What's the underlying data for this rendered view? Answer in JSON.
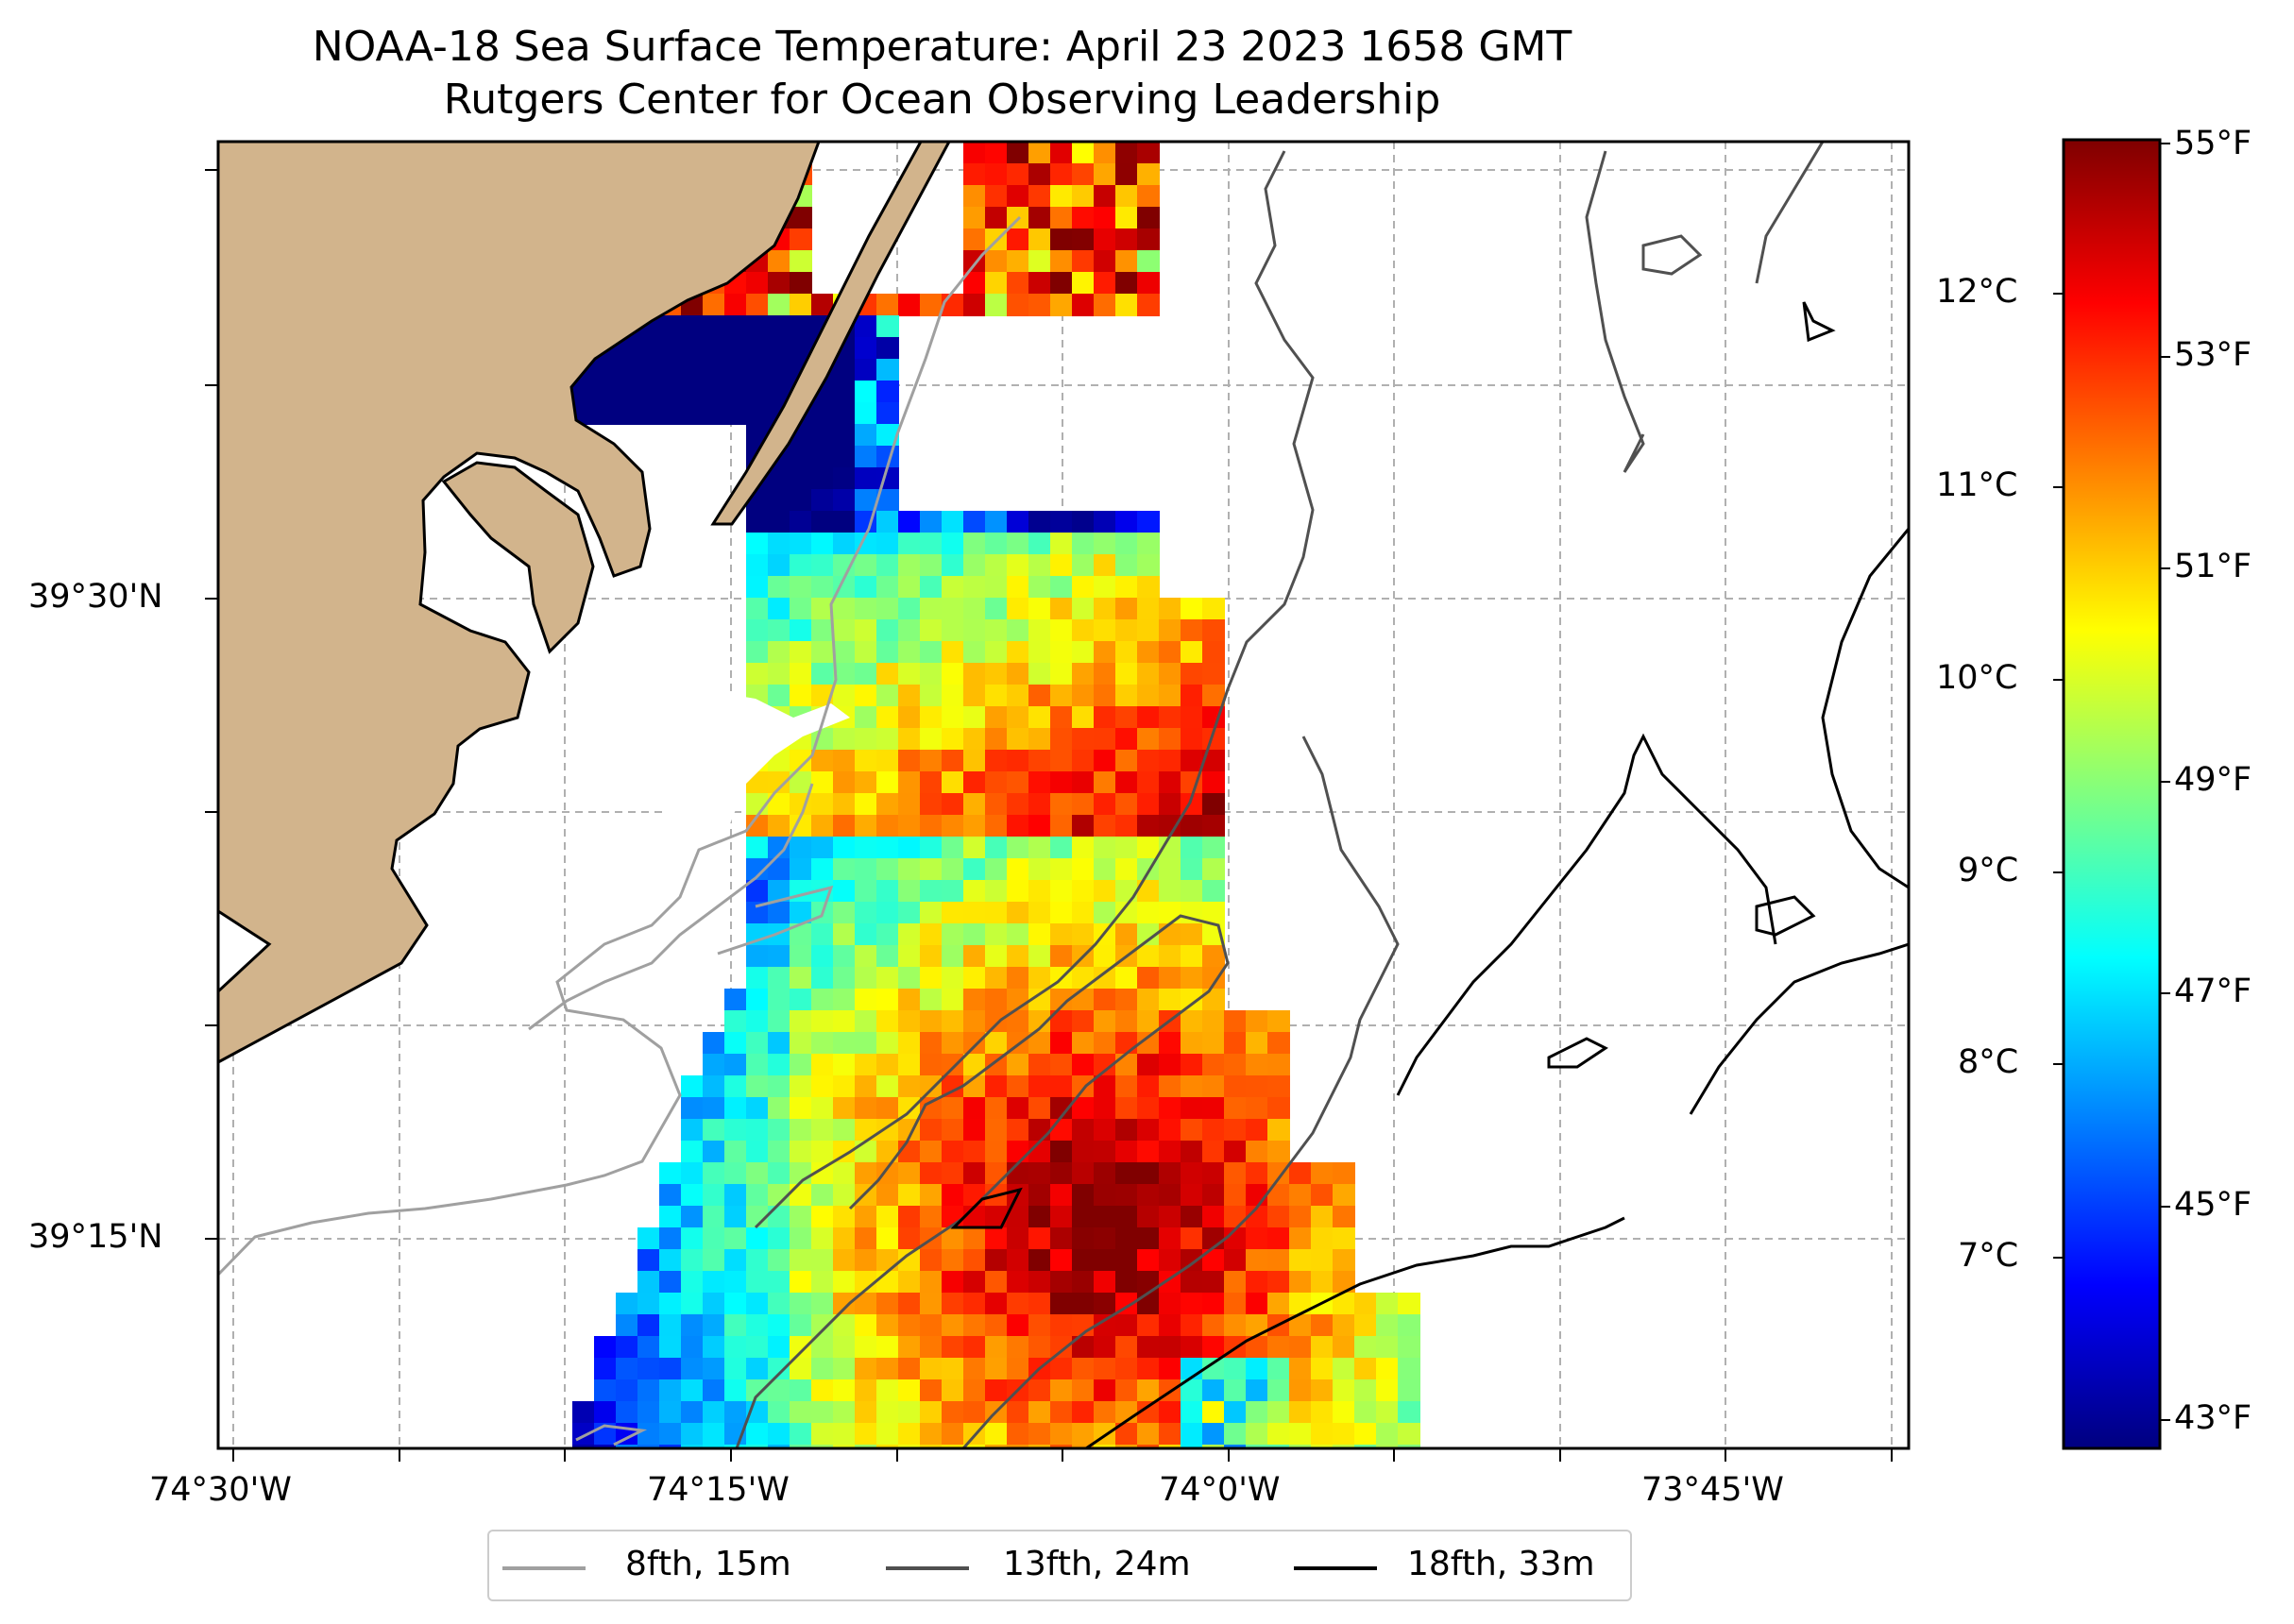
{
  "title": "NOAA-18 Sea Surface Temperature: April 23 2023 1658 GMT",
  "subtitle": "Rutgers Center for Ocean Observing Leadership",
  "map": {
    "lon_ticks": [
      "74°30'W",
      "74°15'W",
      "74°0'W",
      "73°45'W"
    ],
    "lat_ticks": [
      "39°30'N",
      "39°15'N"
    ],
    "land_color": "#d2b48c",
    "grid": true
  },
  "colorbar": {
    "colormap": "jet",
    "range_f": [
      42.8,
      55.2
    ],
    "fahrenheit_labels": [
      "55°F",
      "53°F",
      "51°F",
      "49°F",
      "47°F",
      "45°F",
      "43°F"
    ],
    "celsius_labels": [
      "12°C",
      "11°C",
      "10°C",
      "9°C",
      "8°C",
      "7°C"
    ]
  },
  "legend": {
    "location": "below map",
    "entries": [
      {
        "label": "8fth, 15m",
        "color": "#a0a0a0"
      },
      {
        "label": "13fth, 24m",
        "color": "#505050"
      },
      {
        "label": "18fth, 33m",
        "color": "#000000"
      }
    ]
  }
}
